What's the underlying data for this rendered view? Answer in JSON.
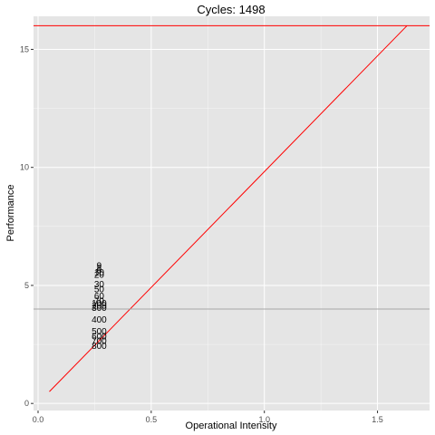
{
  "chart_data": {
    "type": "line",
    "title": "Cycles:  1498",
    "xlabel": "Operational Intensity",
    "ylabel": "Performance",
    "xlim": [
      -0.02,
      1.73
    ],
    "ylim": [
      -0.3,
      16.4
    ],
    "x_ticks": [
      0.0,
      0.5,
      1.0,
      1.5
    ],
    "x_tick_labels": [
      "0.0",
      "0.5",
      "1.0",
      "1.5"
    ],
    "y_ticks": [
      0,
      5,
      10,
      15
    ],
    "y_tick_labels": [
      "0",
      "5",
      "10",
      "15"
    ],
    "grid": true,
    "colors": {
      "panel": "#e5e5e5",
      "grid_major": "#ffffff",
      "roofline": "#ff0000",
      "reference": "#a6a6a6",
      "text": "#000000",
      "tick_text": "#4d4d4d"
    },
    "series": [
      {
        "name": "peak-performance",
        "kind": "hline",
        "y": 16.0,
        "color": "#ff0000"
      },
      {
        "name": "bandwidth-roof",
        "kind": "line",
        "x": [
          0.05,
          1.63
        ],
        "y": [
          0.5,
          16.0
        ],
        "color": "#ff0000"
      },
      {
        "name": "reference-level",
        "kind": "hline",
        "y": 4.0,
        "color": "#a6a6a6"
      }
    ],
    "points": [
      {
        "label": "9",
        "x": 0.27,
        "y": 5.85
      },
      {
        "label": "8",
        "x": 0.27,
        "y": 5.75
      },
      {
        "label": "6",
        "x": 0.27,
        "y": 5.65
      },
      {
        "label": "10",
        "x": 0.27,
        "y": 5.55
      },
      {
        "label": "20",
        "x": 0.27,
        "y": 5.45
      },
      {
        "label": "30",
        "x": 0.27,
        "y": 5.05
      },
      {
        "label": "50",
        "x": 0.27,
        "y": 4.85
      },
      {
        "label": "60",
        "x": 0.27,
        "y": 4.55
      },
      {
        "label": "70",
        "x": 0.27,
        "y": 4.35
      },
      {
        "label": "100",
        "x": 0.27,
        "y": 4.25
      },
      {
        "label": "200",
        "x": 0.27,
        "y": 4.15
      },
      {
        "label": "300",
        "x": 0.27,
        "y": 4.05
      },
      {
        "label": "400",
        "x": 0.27,
        "y": 3.55
      },
      {
        "label": "500",
        "x": 0.27,
        "y": 3.05
      },
      {
        "label": "600",
        "x": 0.27,
        "y": 2.85
      },
      {
        "label": "700",
        "x": 0.27,
        "y": 2.65
      },
      {
        "label": "800",
        "x": 0.27,
        "y": 2.45
      }
    ]
  }
}
